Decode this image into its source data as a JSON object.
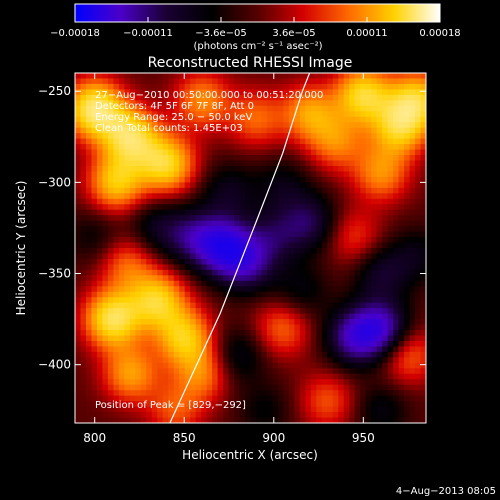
{
  "colorbar": {
    "ticks": [
      "−0.00018",
      "−0.00011",
      "−3.6e−05",
      "3.6e−05",
      "0.00011",
      "0.00018"
    ],
    "unit_label": "(photons cm⁻² s⁻¹ asec⁻²)",
    "colors": [
      "#0000ff",
      "#4b00c8",
      "#1a0033",
      "#000000",
      "#550000",
      "#d40000",
      "#ff6a00",
      "#ffd200",
      "#ffffff"
    ]
  },
  "chart_data": {
    "type": "heatmap",
    "title": "Reconstructed RHESSI Image",
    "xlabel": "Heliocentric X (arcsec)",
    "ylabel": "Heliocentric Y (arcsec)",
    "xlim": [
      789,
      985
    ],
    "ylim": [
      -432,
      -240
    ],
    "x_ticks": [
      800,
      850,
      900,
      950
    ],
    "y_ticks": [
      -250,
      -300,
      -350,
      -400
    ],
    "x_tick_labels": [
      "800",
      "850",
      "900",
      "950"
    ],
    "y_tick_labels": [
      "−250",
      "−300",
      "−350",
      "−400"
    ],
    "zlim": [
      -0.00018,
      0.00018
    ],
    "annotations": [
      "27−Aug−2010 00:50:00.000 to 00:51:20.000",
      "Detectors: 4F 5F 6F 7F 8F, Att 0",
      "Energy Range: 25.0 − 50.0 keV",
      "Clean    Total counts: 1.45E+03"
    ],
    "peak_label": "Position of Peak = [829,−292]",
    "limb_curve": [
      [
        842,
        -432
      ],
      [
        870,
        -372
      ],
      [
        890,
        -322
      ],
      [
        905,
        -284
      ],
      [
        916,
        -250
      ],
      [
        920,
        -240
      ]
    ],
    "blobs": [
      [
        800,
        -260,
        1.0
      ],
      [
        820,
        -275,
        0.85
      ],
      [
        812,
        -300,
        0.7
      ],
      [
        840,
        -290,
        0.8
      ],
      [
        860,
        -255,
        0.5
      ],
      [
        890,
        -265,
        0.4
      ],
      [
        920,
        -262,
        0.55
      ],
      [
        950,
        -252,
        0.8
      ],
      [
        970,
        -270,
        0.7
      ],
      [
        960,
        -295,
        0.5
      ],
      [
        980,
        -255,
        0.75
      ],
      [
        935,
        -278,
        0.45
      ],
      [
        835,
        -325,
        -0.3
      ],
      [
        818,
        -345,
        0.4
      ],
      [
        855,
        -330,
        -0.45
      ],
      [
        872,
        -335,
        -0.85
      ],
      [
        885,
        -345,
        -0.55
      ],
      [
        900,
        -330,
        -0.35
      ],
      [
        920,
        -322,
        -0.45
      ],
      [
        945,
        -330,
        0.3
      ],
      [
        960,
        -350,
        -0.35
      ],
      [
        980,
        -340,
        -0.25
      ],
      [
        905,
        -302,
        -0.25
      ],
      [
        875,
        -305,
        -0.3
      ],
      [
        810,
        -375,
        0.9
      ],
      [
        835,
        -365,
        0.75
      ],
      [
        850,
        -385,
        0.7
      ],
      [
        820,
        -405,
        0.55
      ],
      [
        860,
        -405,
        0.45
      ],
      [
        845,
        -425,
        0.35
      ],
      [
        880,
        -395,
        -0.3
      ],
      [
        905,
        -380,
        0.4
      ],
      [
        915,
        -360,
        -0.25
      ],
      [
        945,
        -385,
        -0.65
      ],
      [
        960,
        -380,
        -0.7
      ],
      [
        975,
        -395,
        0.4
      ],
      [
        930,
        -420,
        0.35
      ],
      [
        960,
        -425,
        -0.25
      ],
      [
        895,
        -425,
        -0.2
      ],
      [
        800,
        -330,
        -0.2
      ]
    ]
  },
  "footer": {
    "timestamp": "4−Aug−2013 08:05"
  }
}
